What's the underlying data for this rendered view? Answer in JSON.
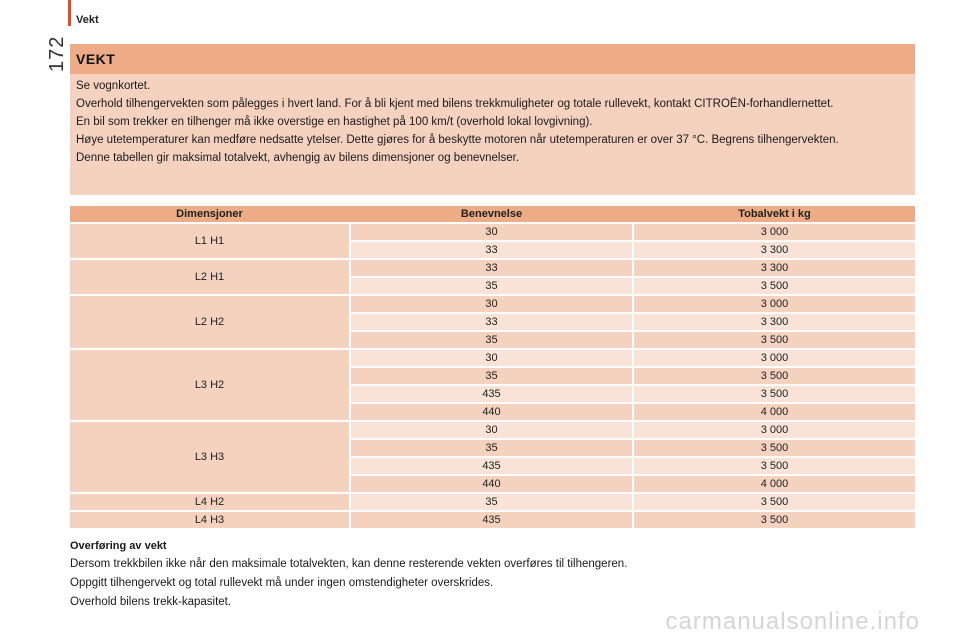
{
  "header": {
    "section": "Vekt",
    "page_number": "172"
  },
  "info": {
    "title": "VEKT",
    "paragraphs": [
      "Se vognkortet.",
      "Overhold tilhengervekten som pålegges i hvert land. For å bli kjent med bilens trekkmuligheter og totale rullevekt, kontakt CITROËN-forhandlernettet.",
      "En bil som trekker en tilhenger må ikke overstige en hastighet på 100 km/t (overhold lokal lovgivning).",
      "Høye utetemperaturer kan medføre nedsatte ytelser. Dette gjøres for å beskytte motoren når utetemperaturen er over 37 °C. Begrens tilhengervekten.",
      "Denne tabellen gir maksimal totalvekt, avhengig av bilens dimensjoner og benevnelser."
    ]
  },
  "table": {
    "headers": [
      "Dimensjoner",
      "Benevnelse",
      "Tobalvekt i kg"
    ],
    "groups": [
      {
        "dimension": "L1 H1",
        "rows": [
          [
            "30",
            "3 000"
          ],
          [
            "33",
            "3 300"
          ]
        ]
      },
      {
        "dimension": "L2 H1",
        "rows": [
          [
            "33",
            "3 300"
          ],
          [
            "35",
            "3 500"
          ]
        ]
      },
      {
        "dimension": "L2 H2",
        "rows": [
          [
            "30",
            "3 000"
          ],
          [
            "33",
            "3 300"
          ],
          [
            "35",
            "3 500"
          ]
        ]
      },
      {
        "dimension": "L3 H2",
        "rows": [
          [
            "30",
            "3 000"
          ],
          [
            "35",
            "3 500"
          ],
          [
            "435",
            "3 500"
          ],
          [
            "440",
            "4 000"
          ]
        ]
      },
      {
        "dimension": "L3 H3",
        "rows": [
          [
            "30",
            "3 000"
          ],
          [
            "35",
            "3 500"
          ],
          [
            "435",
            "3 500"
          ],
          [
            "440",
            "4 000"
          ]
        ]
      },
      {
        "dimension": "L4 H2",
        "rows": [
          [
            "35",
            "3 500"
          ]
        ]
      },
      {
        "dimension": "L4 H3",
        "rows": [
          [
            "435",
            "3 500"
          ]
        ]
      }
    ]
  },
  "transfer": {
    "heading": "Overføring av vekt",
    "paragraphs": [
      "Dersom trekkbilen ikke når den maksimale totalvekten, kan denne resterende vekten overføres til tilhengeren.",
      "Oppgitt tilhengervekt og total rullevekt må under ingen omstendigheter overskrides.",
      "Overhold bilens trekk-kapasitet."
    ]
  },
  "watermark": "carmanualsonline.info",
  "colors": {
    "accent_bar": "#d9532c",
    "title_band": "#edab86",
    "box_fill": "#f5d2bf",
    "row_light": "#f9e3d7"
  }
}
